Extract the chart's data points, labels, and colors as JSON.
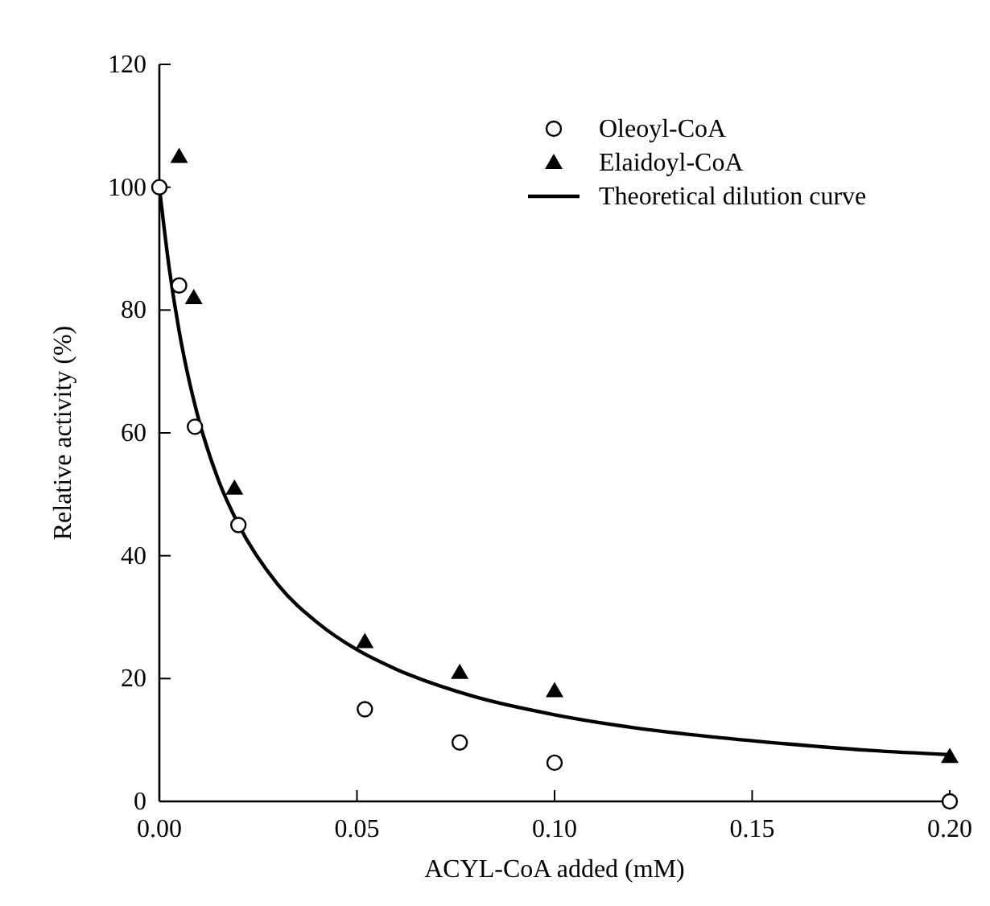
{
  "chart_data": {
    "type": "scatter",
    "xlabel": "ACYL-CoA added (mM)",
    "ylabel": "Relative activity (%)",
    "xlim": [
      0,
      0.2
    ],
    "xticks": [
      {
        "value": 0,
        "label": "0.00"
      },
      0.05,
      {
        "value": 0.1,
        "label": "0.10"
      },
      0.15,
      {
        "value": 0.2,
        "label": "0.20"
      }
    ],
    "ylim": [
      0,
      120
    ],
    "yticks": [
      0,
      20,
      40,
      60,
      80,
      100,
      120
    ],
    "grid": false,
    "legend": "top right",
    "series": [
      {
        "name": "Oleoyl-CoA",
        "marker": "circle",
        "color": "#000000",
        "x": [
          0,
          0.005,
          0.009,
          0.02,
          0.052,
          0.076,
          0.1,
          0.2
        ],
        "values": [
          100,
          84,
          61,
          45,
          15,
          9.6,
          6.3,
          0
        ]
      },
      {
        "name": "Elaidoyl-CoA",
        "marker": "triangle",
        "color": "#000000",
        "x": [
          0.005,
          0.0087,
          0.019,
          0.052,
          0.076,
          0.1,
          0.2
        ],
        "values": [
          105,
          82,
          51,
          26,
          21,
          18,
          7.3
        ]
      },
      {
        "name": "Theoretical dilution curve",
        "type": "line",
        "marker": "none",
        "line_style": "solid",
        "color": "#000000",
        "x": [
          0,
          0.0025,
          0.005,
          0.0075,
          0.01,
          0.015,
          0.02,
          0.03,
          0.04,
          0.05,
          0.06,
          0.08,
          0.1,
          0.12,
          0.14,
          0.16,
          0.18,
          0.2
        ],
        "values": [
          100,
          86.8,
          76.6,
          68.6,
          62.1,
          52.2,
          45.1,
          35.3,
          29.1,
          24.7,
          21.5,
          17.0,
          14.1,
          12.0,
          10.5,
          9.3,
          8.3,
          7.6
        ]
      }
    ]
  }
}
